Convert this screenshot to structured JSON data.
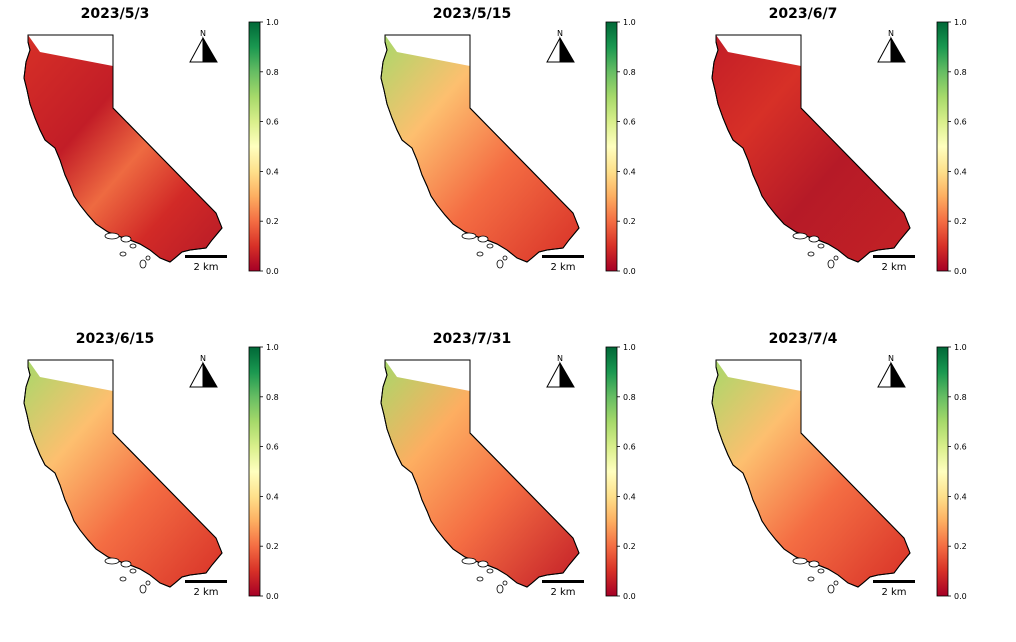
{
  "panels": [
    {
      "title": "2023/5/3",
      "scheme": "low"
    },
    {
      "title": "2023/5/15",
      "scheme": "mid"
    },
    {
      "title": "2023/6/7",
      "scheme": "lowest"
    },
    {
      "title": "2023/6/15",
      "scheme": "mid"
    },
    {
      "title": "2023/7/31",
      "scheme": "midlow"
    },
    {
      "title": "2023/7/4",
      "scheme": "mid"
    }
  ],
  "north_label": "N",
  "scale_bar_label": "2 km",
  "colorbar": {
    "min": 0.0,
    "max": 1.0,
    "ticks": [
      0.0,
      0.2,
      0.4,
      0.6,
      0.8,
      1.0
    ],
    "tick_labels": [
      "0.0",
      "0.2",
      "0.4",
      "0.6",
      "0.8",
      "1.0"
    ],
    "colormap": "RdYlGn",
    "stops": [
      "#a50026",
      "#d73027",
      "#f46d43",
      "#fdae61",
      "#fee08b",
      "#ffffbf",
      "#d9ef8b",
      "#a6d96a",
      "#66bd63",
      "#1a9850",
      "#006837"
    ]
  }
}
